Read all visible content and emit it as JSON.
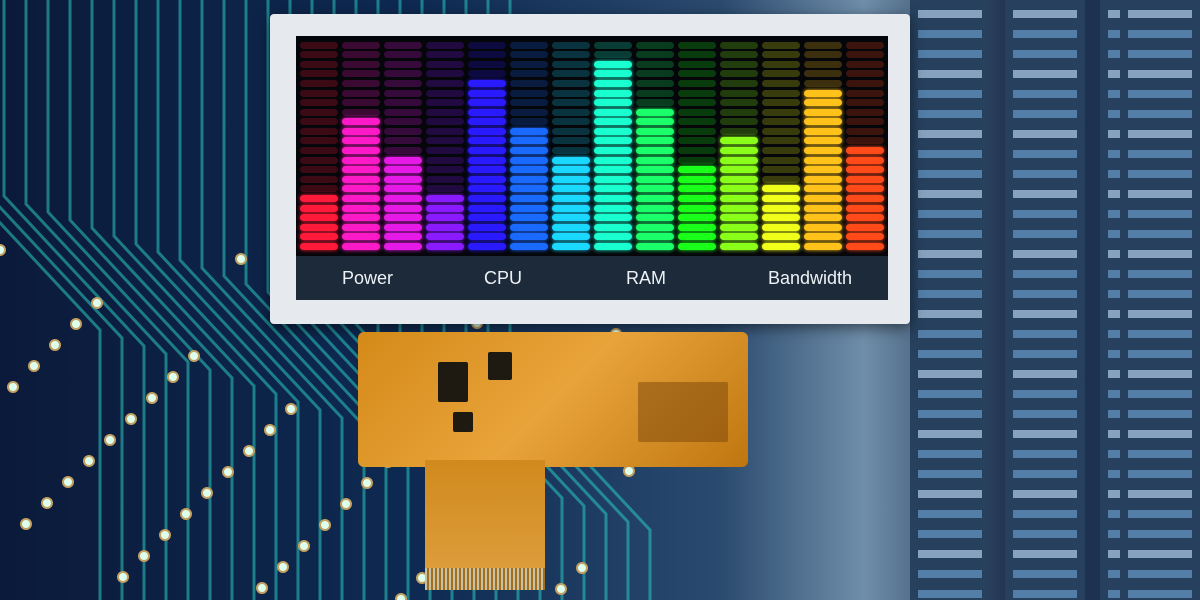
{
  "labels": {
    "power": "Power",
    "cpu": "CPU",
    "ram": "RAM",
    "bandwidth": "Bandwidth"
  },
  "meter": {
    "total_segments": 22,
    "columns": [
      {
        "color": "#ff1a3a",
        "level": 6
      },
      {
        "color": "#ff1ac8",
        "level": 14
      },
      {
        "color": "#e61ae6",
        "level": 10
      },
      {
        "color": "#8a1aff",
        "level": 6
      },
      {
        "color": "#2a1aff",
        "level": 18
      },
      {
        "color": "#1a6aff",
        "level": 13
      },
      {
        "color": "#1ad8ff",
        "level": 10
      },
      {
        "color": "#1affd0",
        "level": 20
      },
      {
        "color": "#1aff6a",
        "level": 15
      },
      {
        "color": "#1aff1a",
        "level": 9
      },
      {
        "color": "#8aff1a",
        "level": 12
      },
      {
        "color": "#f0ff1a",
        "level": 7
      },
      {
        "color": "#ffc21a",
        "level": 17
      },
      {
        "color": "#ff4a1a",
        "level": 11
      }
    ]
  },
  "colors": {
    "pcb_trace": "#2ac8c0",
    "bezel": "#e6eaee",
    "flex": "#e0a030"
  }
}
